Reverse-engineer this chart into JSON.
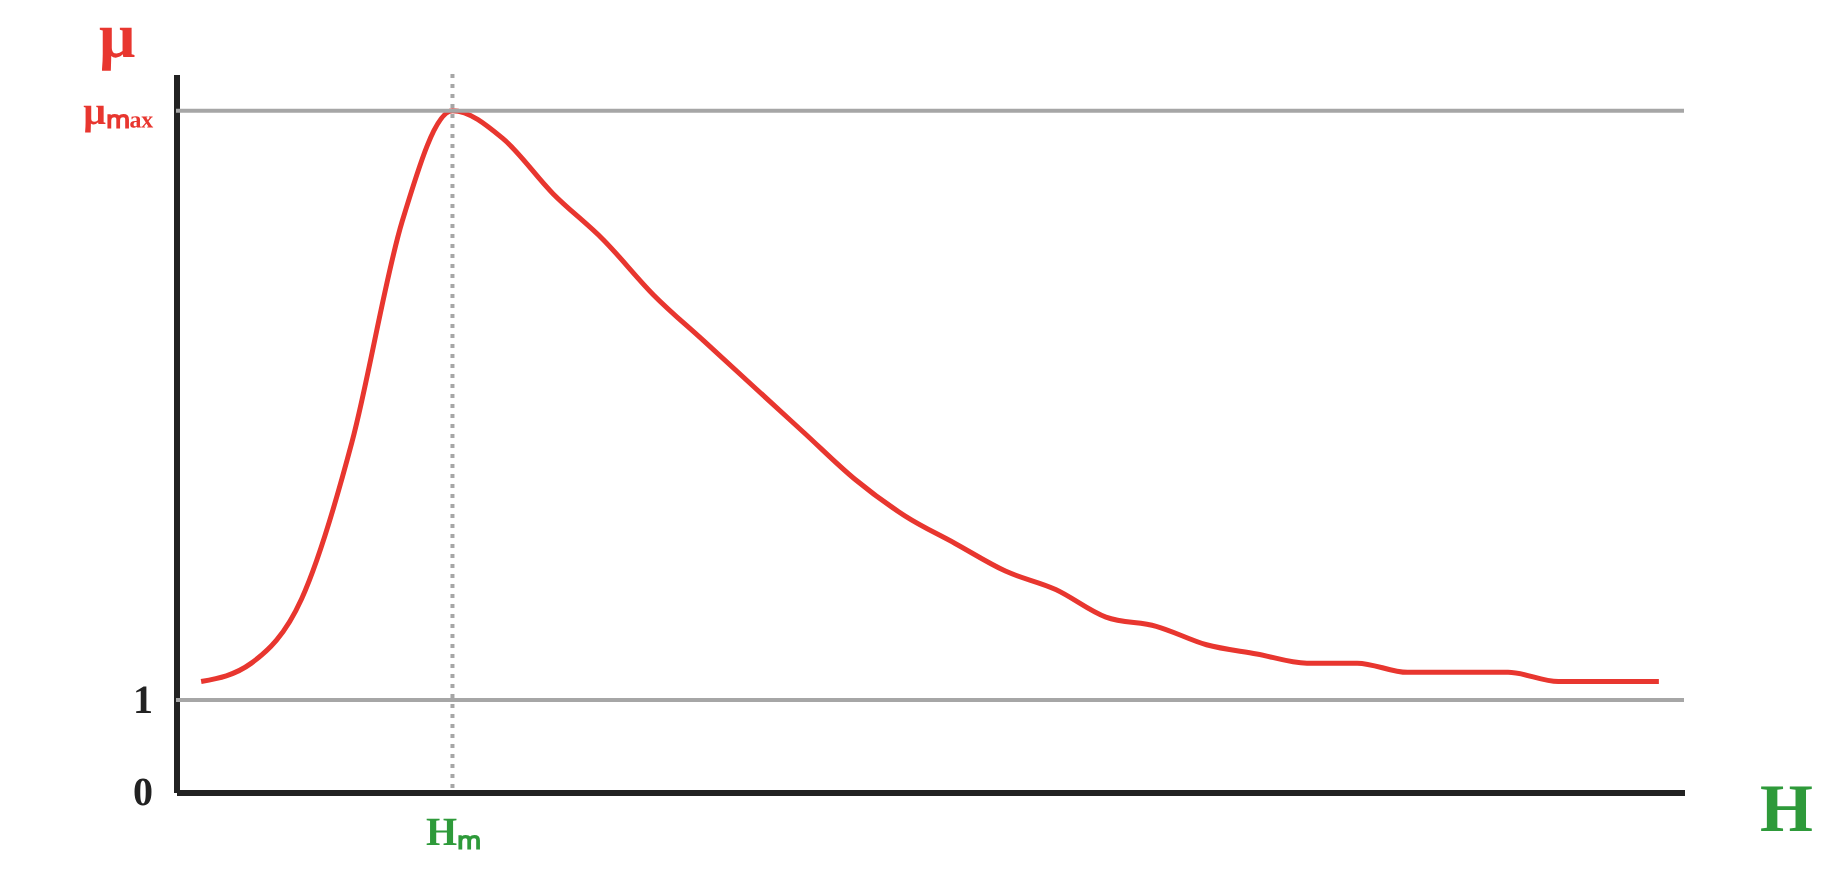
{
  "chart_data": {
    "type": "line",
    "xlabel": "H",
    "ylabel": "μ",
    "categories": [
      null,
      null,
      null,
      null,
      null,
      "Hₘ",
      null,
      null,
      null,
      null,
      null,
      null,
      null,
      null,
      null,
      null,
      null,
      null,
      null,
      null,
      null,
      null,
      null,
      null,
      null,
      null,
      null,
      null,
      null,
      null
    ],
    "series": [
      {
        "color": "#e8362f",
        "values": [
          1.2,
          1.4,
          2.1,
          3.8,
          6.2,
          7.4,
          7.1,
          6.5,
          6.0,
          5.4,
          4.9,
          4.4,
          3.9,
          3.4,
          3.0,
          2.7,
          2.4,
          2.2,
          1.9,
          1.8,
          1.6,
          1.5,
          1.4,
          1.4,
          1.3,
          1.3,
          1.3,
          1.2,
          1.2,
          1.2
        ]
      }
    ],
    "ylim": [
      0,
      7.8
    ],
    "yticks": [
      0,
      1,
      {
        "value": 7.4,
        "label": "μₘₐₓ"
      }
    ],
    "ref_lines": [
      {
        "axis": "y",
        "value": 1,
        "color": "#a6a6a6"
      },
      {
        "axis": "y",
        "value": 7.4,
        "color": "#a6a6a6"
      },
      {
        "axis": "x",
        "value": "Hₘ",
        "color": "#a6a6a6",
        "line_style": "dotted"
      }
    ],
    "marker": "none",
    "line_style": "solid"
  }
}
